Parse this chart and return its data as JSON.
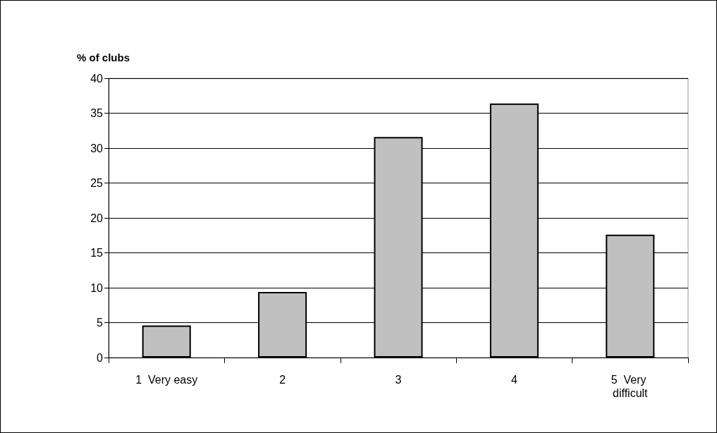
{
  "chart_data": {
    "type": "bar",
    "ylabel": "% of clubs",
    "categories": [
      "1  Very easy",
      "2",
      "3",
      "4",
      "5  Very difficult"
    ],
    "values": [
      4.6,
      9.4,
      31.6,
      36.4,
      17.6
    ],
    "color": "#c0c0c0",
    "ylim": [
      0,
      40
    ],
    "yticks": [
      0,
      5,
      10,
      15,
      20,
      25,
      30,
      35,
      40
    ],
    "grid": "y"
  }
}
